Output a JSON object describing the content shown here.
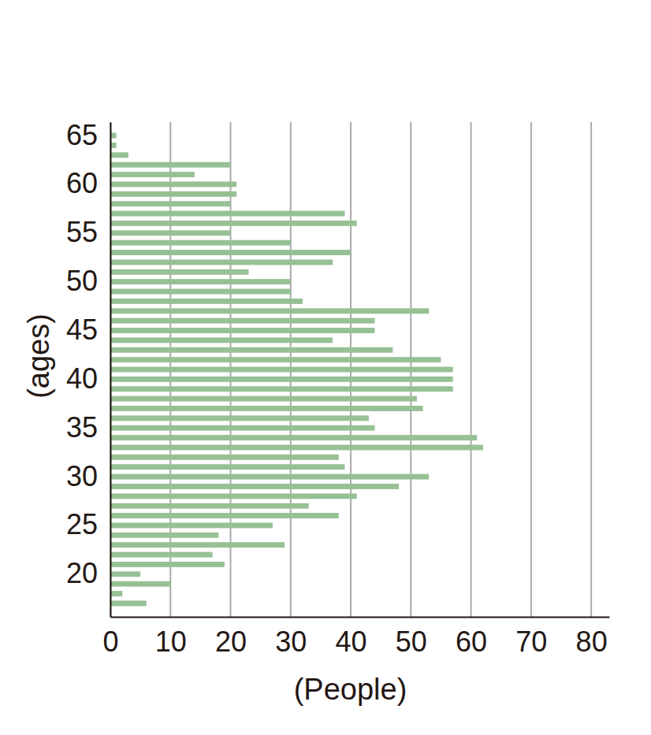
{
  "chart_data": {
    "type": "bar",
    "orientation": "horizontal",
    "categories": [
      null,
      null,
      null,
      "20",
      null,
      null,
      null,
      null,
      "25",
      null,
      null,
      null,
      null,
      "30",
      null,
      null,
      null,
      null,
      "35",
      null,
      null,
      null,
      null,
      "40",
      null,
      null,
      null,
      null,
      "45",
      null,
      null,
      null,
      null,
      "50",
      null,
      null,
      null,
      null,
      "55",
      null,
      null,
      null,
      null,
      "60",
      null,
      null,
      null,
      null,
      "65"
    ],
    "values": [
      6,
      2,
      10,
      5,
      19,
      17,
      29,
      18,
      27,
      38,
      33,
      41,
      48,
      53,
      39,
      38,
      62,
      61,
      44,
      43,
      52,
      51,
      57,
      57,
      57,
      55,
      47,
      37,
      44,
      44,
      53,
      32,
      30,
      30,
      23,
      37,
      40,
      30,
      20,
      41,
      39,
      20,
      21,
      21,
      14,
      20,
      3,
      1,
      1
    ],
    "color": "#97c195",
    "x_label": "(People)",
    "y_label": "(ages)",
    "xlim": [
      0,
      83
    ],
    "xticks": [
      0,
      10,
      20,
      30,
      40,
      50,
      60,
      70,
      80
    ],
    "grid": true
  }
}
